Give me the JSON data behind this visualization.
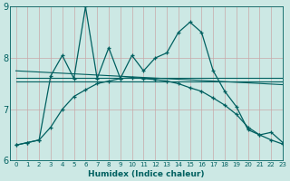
{
  "xlabel": "Humidex (Indice chaleur)",
  "xlim": [
    -0.5,
    23
  ],
  "ylim": [
    6,
    9
  ],
  "yticks": [
    6,
    7,
    8,
    9
  ],
  "xticks": [
    0,
    1,
    2,
    3,
    4,
    5,
    6,
    7,
    8,
    9,
    10,
    11,
    12,
    13,
    14,
    15,
    16,
    17,
    18,
    19,
    20,
    21,
    22,
    23
  ],
  "bg_color": "#cce8e4",
  "line_color": "#006060",
  "grid_color_v": "#c8a8a8",
  "grid_color_h": "#c8a8a8",
  "line1_x": [
    0,
    1,
    2,
    3,
    4,
    5,
    6,
    7,
    8,
    9,
    10,
    11,
    12,
    13,
    14,
    15,
    16,
    17,
    18,
    19,
    20,
    21,
    22,
    23
  ],
  "line1_y": [
    6.3,
    6.35,
    6.4,
    7.65,
    8.05,
    7.6,
    9.0,
    7.6,
    8.2,
    7.6,
    8.05,
    7.75,
    8.0,
    8.1,
    8.5,
    8.7,
    8.5,
    7.75,
    7.35,
    7.05,
    6.6,
    6.5,
    6.55,
    6.35
  ],
  "line2_x": [
    0,
    23
  ],
  "line2_y": [
    7.62,
    7.62
  ],
  "line3_x": [
    0,
    23
  ],
  "line3_y": [
    7.75,
    7.48
  ],
  "line4_x": [
    0,
    23
  ],
  "line4_y": [
    7.55,
    7.55
  ],
  "line5_x": [
    0,
    1,
    2,
    3,
    4,
    5,
    6,
    7,
    8,
    9,
    10,
    11,
    12,
    13,
    14,
    15,
    16,
    17,
    18,
    19,
    20,
    21,
    22,
    23
  ],
  "line5_y": [
    6.3,
    6.35,
    6.4,
    6.65,
    7.0,
    7.25,
    7.38,
    7.5,
    7.55,
    7.6,
    7.62,
    7.6,
    7.58,
    7.55,
    7.5,
    7.42,
    7.35,
    7.22,
    7.08,
    6.9,
    6.65,
    6.5,
    6.4,
    6.32
  ]
}
